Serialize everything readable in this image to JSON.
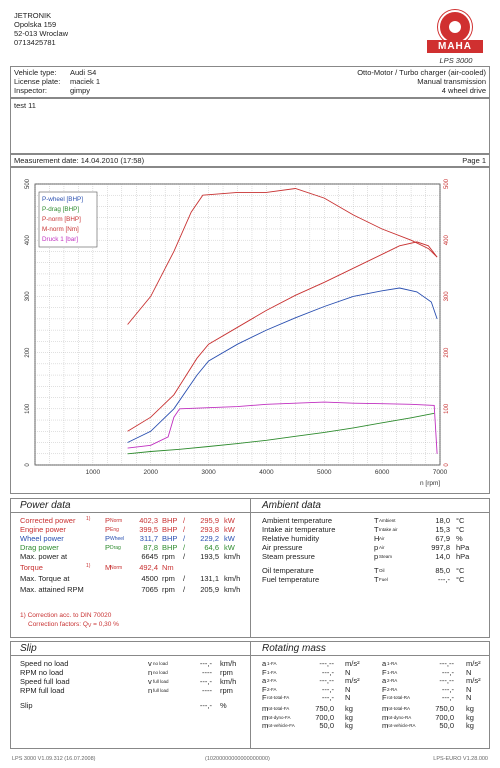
{
  "header": {
    "company": "JETRONIK",
    "street": "Opolska 159",
    "city": "52-013 Wroclaw",
    "phone": "0713425781",
    "logo_text": "MAHA",
    "product": "LPS 3000"
  },
  "vehicle": {
    "type_label": "Vehicle type:",
    "type": "Audi S4",
    "plate_label": "License plate:",
    "plate": "maciek 1",
    "inspector_label": "Inspector:",
    "inspector": "gimpy",
    "engine": "Otto-Motor / Turbo charger (air-cooled)",
    "transmission": "Manual transmission",
    "drive": "4 wheel drive"
  },
  "test_name": "test 11",
  "measurement_date": "Measurement date: 14.04.2010 (17:58)",
  "page": "Page 1",
  "chart_data": {
    "type": "line",
    "x_unit": "n [rpm]",
    "xlim": [
      0,
      7000
    ],
    "xticks": [
      "1000",
      "2000",
      "3000",
      "4000",
      "5000",
      "6000",
      "7000"
    ],
    "ylim_left": [
      0,
      500
    ],
    "yticks_left": [
      "0",
      "100",
      "200",
      "300",
      "400",
      "500"
    ],
    "ylim_right": [
      0,
      500
    ],
    "yticks_right": [
      "0",
      "100",
      "200",
      "300",
      "400",
      "500"
    ],
    "right_tick_colors": [
      "#c83232",
      "#c83232",
      "#c83232",
      "#c83232",
      "#c83232",
      "#c83232"
    ],
    "grid": true,
    "legend_position": "top-left",
    "series": [
      {
        "name": "P-wheel [BHP]",
        "color": "#2a4fb0",
        "points": [
          [
            1600,
            40
          ],
          [
            2000,
            60
          ],
          [
            2400,
            100
          ],
          [
            2800,
            160
          ],
          [
            3000,
            185
          ],
          [
            3500,
            215
          ],
          [
            4000,
            240
          ],
          [
            4500,
            262
          ],
          [
            5000,
            282
          ],
          [
            5500,
            300
          ],
          [
            6000,
            310
          ],
          [
            6300,
            315
          ],
          [
            6600,
            308
          ],
          [
            6850,
            290
          ],
          [
            6950,
            260
          ]
        ]
      },
      {
        "name": "P-drag [BHP]",
        "color": "#2e8b2e",
        "points": [
          [
            1600,
            20
          ],
          [
            2000,
            24
          ],
          [
            2500,
            28
          ],
          [
            3000,
            33
          ],
          [
            3500,
            38
          ],
          [
            4000,
            44
          ],
          [
            4500,
            51
          ],
          [
            5000,
            58
          ],
          [
            5500,
            66
          ],
          [
            6000,
            75
          ],
          [
            6500,
            84
          ],
          [
            6900,
            92
          ]
        ]
      },
      {
        "name": "P-norm [BHP]",
        "color": "#c83232",
        "points": [
          [
            1600,
            60
          ],
          [
            2000,
            85
          ],
          [
            2400,
            125
          ],
          [
            2800,
            190
          ],
          [
            3000,
            215
          ],
          [
            3500,
            245
          ],
          [
            4000,
            275
          ],
          [
            4500,
            302
          ],
          [
            5000,
            325
          ],
          [
            5500,
            350
          ],
          [
            6000,
            375
          ],
          [
            6300,
            390
          ],
          [
            6600,
            397
          ],
          [
            6800,
            390
          ],
          [
            6950,
            370
          ]
        ]
      },
      {
        "name": "M-norm [Nm]",
        "color": "#c83232",
        "points": [
          [
            1600,
            250
          ],
          [
            2000,
            300
          ],
          [
            2400,
            380
          ],
          [
            2700,
            450
          ],
          [
            2900,
            480
          ],
          [
            3500,
            485
          ],
          [
            4000,
            485
          ],
          [
            4500,
            492
          ],
          [
            5000,
            475
          ],
          [
            5500,
            445
          ],
          [
            6000,
            420
          ],
          [
            6500,
            400
          ],
          [
            6800,
            385
          ],
          [
            6950,
            370
          ]
        ]
      },
      {
        "name": "Druck 1 [bar]",
        "color": "#c030c0",
        "points": [
          [
            1600,
            30
          ],
          [
            2000,
            35
          ],
          [
            2300,
            50
          ],
          [
            2400,
            85
          ],
          [
            2500,
            100
          ],
          [
            3000,
            102
          ],
          [
            3500,
            104
          ],
          [
            4000,
            108
          ],
          [
            4500,
            110
          ],
          [
            5000,
            112
          ],
          [
            5500,
            110
          ],
          [
            6000,
            109
          ],
          [
            6500,
            108
          ],
          [
            6900,
            106
          ],
          [
            6950,
            20
          ]
        ]
      }
    ]
  },
  "power_data": {
    "title": "Power data",
    "rows": [
      {
        "label": "Corrected power",
        "note": "1)",
        "sym": "P",
        "sub": "Norm",
        "v1": "402,3",
        "u1": "BHP",
        "sep": "/",
        "v2": "295,9",
        "u2": "kW",
        "color": "#c83232"
      },
      {
        "label": "Engine power",
        "note": "",
        "sym": "P",
        "sub": "Eng",
        "v1": "399,5",
        "u1": "BHP",
        "sep": "/",
        "v2": "293,8",
        "u2": "kW",
        "color": "#c83232"
      },
      {
        "label": "Wheel power",
        "note": "",
        "sym": "P",
        "sub": "Wheel",
        "v1": "311,7",
        "u1": "BHP",
        "sep": "/",
        "v2": "229,2",
        "u2": "kW",
        "color": "#2a4fb0"
      },
      {
        "label": "Drag power",
        "note": "",
        "sym": "P",
        "sub": "Drag",
        "v1": "87,8",
        "u1": "BHP",
        "sep": "/",
        "v2": "64,6",
        "u2": "kW",
        "color": "#2e8b2e"
      },
      {
        "label": "Max. power at",
        "note": "",
        "sym": "",
        "sub": "",
        "v1": "6645",
        "u1": "rpm",
        "sep": "/",
        "v2": "193,5",
        "u2": "km/h",
        "color": "#222"
      }
    ],
    "torque_rows": [
      {
        "label": "Torque",
        "note": "1)",
        "sym": "M",
        "sub": "Norm",
        "v1": "492,4",
        "u1": "Nm",
        "sep": "",
        "v2": "",
        "u2": "",
        "color": "#c83232"
      },
      {
        "label": "Max. Torque at",
        "note": "",
        "sym": "",
        "sub": "",
        "v1": "4500",
        "u1": "rpm",
        "sep": "/",
        "v2": "131,1",
        "u2": "km/h",
        "color": "#222"
      },
      {
        "label": "Max. attained RPM",
        "note": "",
        "sym": "",
        "sub": "",
        "v1": "7065",
        "u1": "rpm",
        "sep": "/",
        "v2": "205,9",
        "u2": "km/h",
        "color": "#222"
      }
    ],
    "correction_line1": "1) Correction acc. to DIN 70020",
    "correction_line2": "Correction factors: Q",
    "correction_sub": "V",
    "correction_value": "= 0,30 %"
  },
  "ambient_data": {
    "title": "Ambient data",
    "rows": [
      {
        "label": "Ambient temperature",
        "sym": "T",
        "sub": "Ambient",
        "v": "18,0",
        "u": "°C"
      },
      {
        "label": "Intake air temperature",
        "sym": "T",
        "sub": "Intake air",
        "v": "15,3",
        "u": "°C"
      },
      {
        "label": "Relative humidity",
        "sym": "H",
        "sub": "Air",
        "v": "67,9",
        "u": "%"
      },
      {
        "label": "Air pressure",
        "sym": "p",
        "sub": "Air",
        "v": "997,8",
        "u": "hPa"
      },
      {
        "label": "Steam pressure",
        "sym": "p",
        "sub": "Steam",
        "v": "14,0",
        "u": "hPa"
      },
      {
        "label": "Oil temperature",
        "sym": "T",
        "sub": "Oil",
        "v": "85,0",
        "u": "°C"
      },
      {
        "label": "Fuel temperature",
        "sym": "T",
        "sub": "Fuel",
        "v": "---,-",
        "u": "°C"
      }
    ]
  },
  "slip": {
    "title": "Slip",
    "rows": [
      {
        "label": "Speed no load",
        "sym": "v",
        "sub": "no load",
        "v": "---,-",
        "u": "km/h"
      },
      {
        "label": "RPM no load",
        "sym": "n",
        "sub": "no load",
        "v": "----",
        "u": "rpm"
      },
      {
        "label": "Speed full load",
        "sym": "v",
        "sub": "full load",
        "v": "---,-",
        "u": "km/h"
      },
      {
        "label": "RPM full load",
        "sym": "n",
        "sub": "full load",
        "v": "----",
        "u": "rpm"
      },
      {
        "label": "Slip",
        "sym": "",
        "sub": "",
        "v": "---,-",
        "u": "%"
      }
    ]
  },
  "rotating_mass": {
    "title": "Rotating mass",
    "left": [
      {
        "sym": "a",
        "sub": "1-FA",
        "v": "---,--",
        "u": "m/s²"
      },
      {
        "sym": "F",
        "sub": "1-FA",
        "v": "---,-",
        "u": "N"
      },
      {
        "sym": "a",
        "sub": "2-FA",
        "v": "---,--",
        "u": "m/s²"
      },
      {
        "sym": "F",
        "sub": "2-FA",
        "v": "---,-",
        "u": "N"
      },
      {
        "sym": "F",
        "sub": "rot-total-FA",
        "v": "---,-",
        "u": "N"
      },
      {
        "sym": "m",
        "sub": "rot-total-FA",
        "v": "750,0",
        "u": "kg"
      },
      {
        "sym": "m",
        "sub": "rot-dyno-FA",
        "v": "700,0",
        "u": "kg"
      },
      {
        "sym": "m",
        "sub": "rot-vehicle-FA",
        "v": "50,0",
        "u": "kg"
      }
    ],
    "right": [
      {
        "sym": "a",
        "sub": "1-RA",
        "v": "---,--",
        "u": "m/s²"
      },
      {
        "sym": "F",
        "sub": "1-RA",
        "v": "---,-",
        "u": "N"
      },
      {
        "sym": "a",
        "sub": "2-RA",
        "v": "---,--",
        "u": "m/s²"
      },
      {
        "sym": "F",
        "sub": "2-RA",
        "v": "---,-",
        "u": "N"
      },
      {
        "sym": "F",
        "sub": "rot-total-RA",
        "v": "---,-",
        "u": "N"
      },
      {
        "sym": "m",
        "sub": "rot-total-RA",
        "v": "750,0",
        "u": "kg"
      },
      {
        "sym": "m",
        "sub": "rot-dyno-RA",
        "v": "700,0",
        "u": "kg"
      },
      {
        "sym": "m",
        "sub": "rot-vehicle-RA",
        "v": "50,0",
        "u": "kg"
      }
    ]
  },
  "footer": {
    "left": "LPS 3000 V1.09.312 (16.07.2008)",
    "center": "(10200000000000000000)",
    "right": "LPS-EURO V1.28.000"
  }
}
